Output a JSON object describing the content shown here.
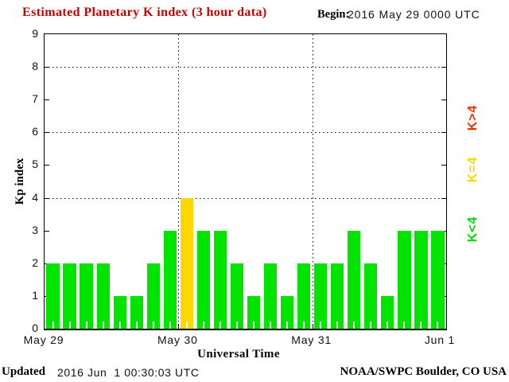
{
  "header": {
    "title": "Estimated Planetary K index (3 hour data)",
    "title_color": "#cc0000",
    "begin_label": "Begin:",
    "begin_value": "2016 May 29 0000 UTC"
  },
  "footer": {
    "updated_label": "Updated",
    "updated_value": "2016 Jun  1 00:30:03 UTC",
    "source": "NOAA/SWPC Boulder, CO USA"
  },
  "chart_data": {
    "type": "bar",
    "title": "Estimated Planetary K index (3 hour data)",
    "xlabel": "Universal Time",
    "ylabel": "Kp index",
    "ylim": [
      0,
      9
    ],
    "yticks": [
      0,
      1,
      2,
      3,
      4,
      5,
      6,
      7,
      8,
      9
    ],
    "y_gridlines": [
      4,
      6,
      8
    ],
    "grid_style": "dotted",
    "hours_per_bar": 3,
    "bars_per_day": 8,
    "x_tick_labels": [
      "May 29",
      "May 30",
      "May 31",
      "Jun 1"
    ],
    "values": [
      2,
      2,
      2,
      2,
      1,
      1,
      2,
      3,
      4,
      3,
      3,
      2,
      1,
      2,
      1,
      2,
      2,
      2,
      3,
      2,
      1,
      3,
      3,
      3
    ],
    "colors": {
      "k_below_4": "#00e400",
      "k_equal_4": "#ffd700",
      "k_above_4": "#f03000"
    },
    "legend": [
      {
        "label": "K>4",
        "color": "#f03000"
      },
      {
        "label": "K=4",
        "color": "#ffd700"
      },
      {
        "label": "K<4",
        "color": "#00dd00"
      }
    ],
    "legend_position": "right-rotated"
  }
}
